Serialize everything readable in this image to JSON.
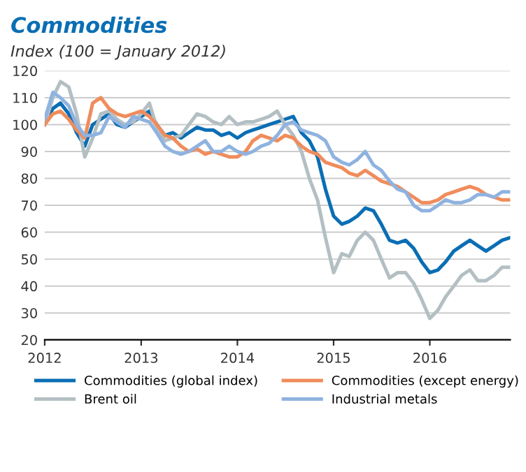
{
  "chart_data": {
    "type": "line",
    "title": "Commodities",
    "subtitle": "Index (100 = January 2012)",
    "x": [
      "2012-01",
      "2012-02",
      "2012-03",
      "2012-04",
      "2012-05",
      "2012-06",
      "2012-07",
      "2012-08",
      "2012-09",
      "2012-10",
      "2012-11",
      "2012-12",
      "2013-01",
      "2013-02",
      "2013-03",
      "2013-04",
      "2013-05",
      "2013-06",
      "2013-07",
      "2013-08",
      "2013-09",
      "2013-10",
      "2013-11",
      "2013-12",
      "2014-01",
      "2014-02",
      "2014-03",
      "2014-04",
      "2014-05",
      "2014-06",
      "2014-07",
      "2014-08",
      "2014-09",
      "2014-10",
      "2014-11",
      "2014-12",
      "2015-01",
      "2015-02",
      "2015-03",
      "2015-04",
      "2015-05",
      "2015-06",
      "2015-07",
      "2015-08",
      "2015-09",
      "2015-10",
      "2015-11",
      "2015-12",
      "2016-01",
      "2016-02",
      "2016-03",
      "2016-04",
      "2016-05",
      "2016-06",
      "2016-07",
      "2016-08",
      "2016-09",
      "2016-10",
      "2016-11"
    ],
    "series": [
      {
        "name": "Commodities (global index)",
        "color": "#0a6eb4",
        "values": [
          100,
          106,
          108,
          104,
          97,
          92,
          100,
          102,
          104,
          100,
          99,
          101,
          103,
          105,
          100,
          96,
          97,
          95,
          97,
          99,
          98,
          98,
          96,
          97,
          95,
          97,
          98,
          99,
          100,
          101,
          102,
          103,
          97,
          94,
          88,
          76,
          66,
          63,
          64,
          66,
          69,
          68,
          63,
          57,
          56,
          57,
          54,
          49,
          45,
          46,
          49,
          53,
          55,
          57,
          55,
          53,
          55,
          57,
          58
        ]
      },
      {
        "name": "Brent oil",
        "color": "#b3bfc3",
        "values": [
          100,
          110,
          116,
          114,
          104,
          88,
          95,
          104,
          105,
          102,
          100,
          101,
          104,
          108,
          99,
          94,
          95,
          96,
          100,
          104,
          103,
          101,
          100,
          103,
          100,
          101,
          101,
          102,
          103,
          105,
          100,
          96,
          90,
          80,
          72,
          58,
          45,
          52,
          51,
          57,
          60,
          57,
          50,
          43,
          45,
          45,
          41,
          35,
          28,
          31,
          36,
          40,
          44,
          46,
          42,
          42,
          44,
          47,
          47
        ]
      },
      {
        "name": "Commodities (except energy)",
        "color": "#f08c5c",
        "values": [
          100,
          104,
          105,
          102,
          98,
          95,
          108,
          110,
          106,
          104,
          103,
          104,
          105,
          103,
          100,
          96,
          95,
          92,
          90,
          91,
          89,
          90,
          89,
          88,
          88,
          90,
          94,
          96,
          95,
          94,
          96,
          95,
          92,
          90,
          89,
          86,
          85,
          84,
          82,
          81,
          83,
          81,
          79,
          78,
          77,
          75,
          73,
          71,
          71,
          72,
          74,
          75,
          76,
          77,
          76,
          74,
          73,
          72,
          72
        ]
      },
      {
        "name": "Industrial metals",
        "color": "#8fb3e0",
        "values": [
          102,
          112,
          110,
          107,
          100,
          96,
          96,
          97,
          103,
          101,
          99,
          103,
          102,
          101,
          97,
          92,
          90,
          89,
          90,
          92,
          94,
          90,
          90,
          92,
          90,
          89,
          90,
          92,
          93,
          96,
          100,
          101,
          98,
          97,
          96,
          94,
          88,
          86,
          85,
          87,
          90,
          85,
          83,
          79,
          76,
          75,
          70,
          68,
          68,
          70,
          72,
          71,
          71,
          72,
          74,
          74,
          73,
          75,
          75
        ]
      }
    ],
    "xlim": [
      "2012-01-01",
      "2016-11-01"
    ],
    "xticks": [
      {
        "value": "2012-01-01",
        "label": "2012"
      },
      {
        "value": "2013-01-01",
        "label": "2013"
      },
      {
        "value": "2014-01-01",
        "label": "2014"
      },
      {
        "value": "2015-01-01",
        "label": "2015"
      },
      {
        "value": "2016-01-01",
        "label": "2016"
      }
    ],
    "ylim": [
      20,
      120
    ],
    "yticks": [
      20,
      30,
      40,
      50,
      60,
      70,
      80,
      90,
      100,
      110,
      120
    ],
    "grid": "y",
    "legend": "bottom",
    "marker": "none",
    "line_style": "solid"
  }
}
